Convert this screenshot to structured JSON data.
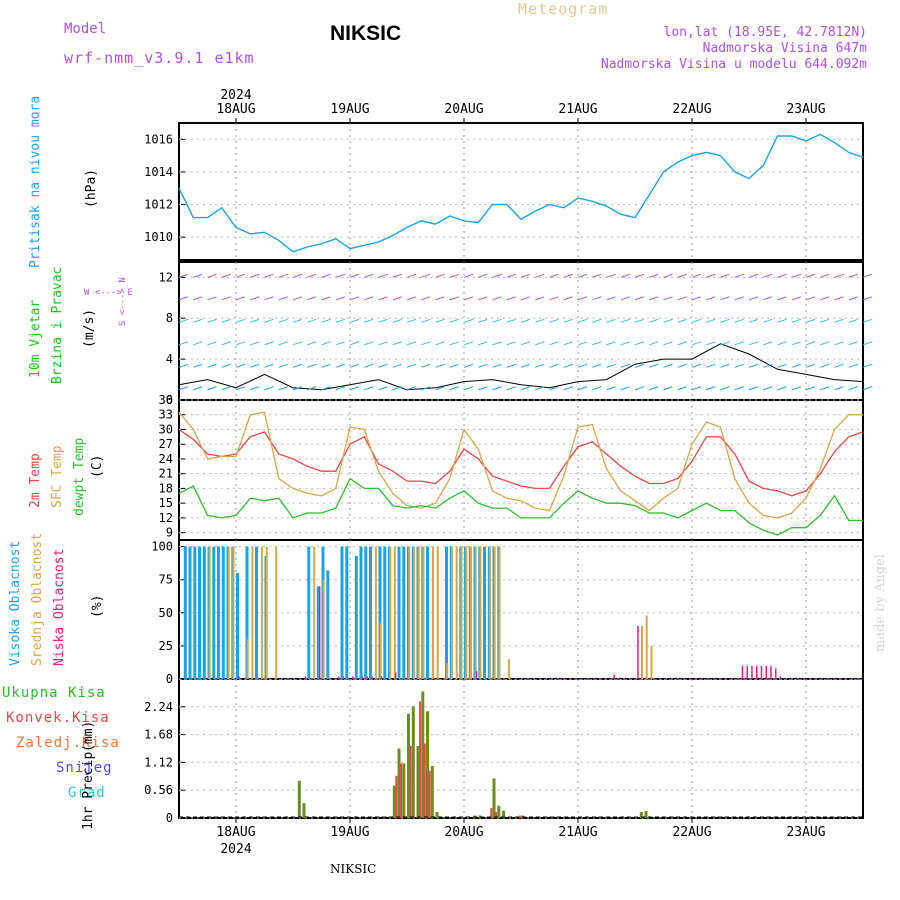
{
  "header": {
    "model_label": "Model",
    "model_name": "wrf-nmm_v3.9.1 e1km",
    "title": "NIKSIC",
    "meteogram_label": "Meteogram",
    "lonlat": "lon,lat (18.95E, 42.7812N)",
    "altitude": "Nadmorska Visina 647m",
    "model_altitude": "Nadmorska Visina u modelu 644.092m",
    "bottom_title": "NIKSIC",
    "watermark": "made by Angel"
  },
  "colors": {
    "pressure": "#1ca3e6",
    "temp2m": "#e84848",
    "sfc": "#d6a84a",
    "dewpt": "#2ebd2e",
    "high_cloud": "#1ca3e6",
    "mid_cloud": "#d6a84a",
    "low_cloud": "#e8207c",
    "total_precip": "#6b8e23",
    "conv_precip": "#e84848",
    "frozen_precip": "#e87a3a",
    "snow": "#5050e0",
    "graupel": "#2ec4c4",
    "wind_label": "#22c322",
    "wind_dir": "#b050e0"
  },
  "time_axis": {
    "year": "2024",
    "days": [
      "18AUG",
      "19AUG",
      "20AUG",
      "21AUG",
      "22AUG",
      "23AUG"
    ],
    "start_day_offset": -0.5,
    "end_day_offset": 5.5
  },
  "panel_labels": {
    "pressure": [
      "Pritisak na nivou mora",
      "(hPa)"
    ],
    "wind": [
      "10m Vjetar",
      "Brzina i Pravac",
      "(m/s)"
    ],
    "wind_compass": [
      "W <---> E",
      "S <---> N"
    ],
    "temp": [
      "2m Temp",
      "SFC Temp",
      "dewpt Temp",
      "(C)"
    ],
    "cloud": [
      "Visoka Oblacnost",
      "Srednja Oblacnost",
      "Niska Oblacnost",
      "(%)"
    ],
    "precip_legend": [
      "Ukupna Kisa",
      "Konvek.Kisa",
      "Zaledj.Kisa",
      "Snijeg",
      "Grad"
    ],
    "precip_axis": [
      "1hr Precip",
      "(mm)"
    ]
  },
  "chart_data": [
    {
      "type": "line",
      "panel": "pressure",
      "ylabel": "(hPa)",
      "ylim": [
        1008.6,
        1017
      ],
      "yticks": [
        1010,
        1012,
        1014,
        1016
      ],
      "x_hours": [
        0,
        3,
        6,
        9,
        12,
        15,
        18,
        21,
        24,
        27,
        30,
        33,
        36,
        39,
        42,
        45,
        48,
        51,
        54,
        57,
        60,
        63,
        66,
        69,
        72,
        75,
        78,
        81,
        84,
        87,
        90,
        93,
        96,
        99,
        102,
        105,
        108,
        111,
        114,
        117,
        120,
        123,
        126,
        129,
        132,
        135,
        138,
        141,
        144
      ],
      "series": [
        {
          "name": "Pritisak na nivou mora",
          "values": [
            1013.0,
            1011.2,
            1011.2,
            1011.8,
            1010.6,
            1010.2,
            1010.3,
            1009.8,
            1009.1,
            1009.4,
            1009.6,
            1009.9,
            1009.3,
            1009.5,
            1009.7,
            1010.1,
            1010.6,
            1011.0,
            1010.8,
            1011.3,
            1011.0,
            1010.9,
            1012.0,
            1012.0,
            1011.1,
            1011.6,
            1012.0,
            1011.8,
            1012.4,
            1012.2,
            1011.9,
            1011.4,
            1011.2,
            1012.6,
            1014.0,
            1014.6,
            1015.0,
            1015.2,
            1015.0,
            1014.0,
            1013.6,
            1014.4,
            1016.2,
            1016.2,
            1015.9,
            1016.3,
            1015.8,
            1015.2,
            1014.9
          ]
        }
      ]
    },
    {
      "type": "line",
      "panel": "wind",
      "ylabel": "(m/s)",
      "ylim": [
        0,
        13.5
      ],
      "yticks": [
        0,
        4,
        8,
        12
      ],
      "x_hours": [
        0,
        6,
        12,
        18,
        24,
        30,
        36,
        42,
        48,
        54,
        60,
        66,
        72,
        78,
        84,
        90,
        96,
        102,
        108,
        114,
        120,
        126,
        132,
        138,
        144
      ],
      "series": [
        {
          "name": "10m Vjetar",
          "values": [
            1.5,
            2.0,
            1.2,
            2.5,
            1.2,
            1.0,
            1.5,
            2.0,
            1.0,
            1.2,
            1.8,
            2.0,
            1.5,
            1.2,
            1.8,
            2.0,
            3.5,
            4.0,
            4.0,
            5.5,
            4.5,
            3.0,
            2.5,
            2.0,
            1.8
          ]
        }
      ]
    },
    {
      "type": "line",
      "panel": "temperature",
      "ylabel": "(C)",
      "ylim": [
        7.5,
        36
      ],
      "yticks": [
        9,
        12,
        15,
        18,
        21,
        24,
        27,
        30,
        33,
        36
      ],
      "x_hours": [
        0,
        3,
        6,
        9,
        12,
        15,
        18,
        21,
        24,
        27,
        30,
        33,
        36,
        39,
        42,
        45,
        48,
        51,
        54,
        57,
        60,
        63,
        66,
        69,
        72,
        75,
        78,
        81,
        84,
        87,
        90,
        93,
        96,
        99,
        102,
        105,
        108,
        111,
        114,
        117,
        120,
        123,
        126,
        129,
        132,
        135,
        138,
        141,
        144
      ],
      "series": [
        {
          "name": "2m Temp",
          "values": [
            30,
            28,
            25,
            24.5,
            25,
            28.5,
            29.5,
            25,
            24,
            22.5,
            21.5,
            21.5,
            27,
            28.5,
            23,
            21.5,
            19.5,
            19.5,
            19,
            21.5,
            26,
            24,
            20.5,
            19.5,
            18.5,
            18,
            18,
            22.5,
            26.5,
            27.5,
            25,
            22.5,
            20.5,
            19,
            19,
            20,
            23.5,
            28.5,
            28.5,
            25,
            19.5,
            18,
            17.5,
            16.5,
            17.5,
            21,
            25.5,
            28.5,
            29.5
          ]
        },
        {
          "name": "SFC Temp",
          "values": [
            33.5,
            30,
            24,
            24.5,
            24.5,
            33,
            33.5,
            20,
            18,
            17,
            16.5,
            18,
            30.5,
            30,
            21.5,
            17,
            14.5,
            14,
            15,
            20,
            30,
            26,
            17.5,
            16,
            15.5,
            14,
            13.5,
            20.5,
            30.5,
            31,
            22,
            17.5,
            15.5,
            13.5,
            16,
            18,
            27,
            31.5,
            30.5,
            20,
            15,
            12.5,
            12,
            13,
            16,
            22,
            30,
            33,
            33
          ]
        },
        {
          "name": "dewpt Temp",
          "values": [
            17,
            18.5,
            12.5,
            12,
            12.5,
            16,
            15.5,
            16,
            12,
            13,
            13,
            14,
            20,
            18,
            18,
            14.5,
            14,
            14.5,
            14,
            16,
            17.5,
            15,
            14,
            14,
            12,
            12,
            12,
            15,
            17.5,
            16,
            15,
            15,
            14.5,
            13,
            13,
            12,
            13.5,
            15,
            13.5,
            13.5,
            11,
            9.5,
            8.5,
            10,
            10,
            12.5,
            16.5,
            11.5,
            11.5
          ]
        }
      ]
    },
    {
      "type": "bar",
      "panel": "cloud",
      "ylabel": "(%)",
      "ylim": [
        0,
        105
      ],
      "yticks": [
        0,
        25,
        50,
        75,
        100
      ],
      "series": [
        {
          "name": "Visoka Oblacnost",
          "hours": [
            1,
            2,
            3,
            4,
            5,
            6,
            7,
            8,
            9,
            10,
            11,
            12,
            14,
            16,
            18,
            27,
            29,
            30,
            31,
            34,
            35,
            37,
            38,
            39,
            40,
            42,
            43,
            44,
            46,
            47,
            48,
            49,
            50,
            51,
            52,
            56,
            57,
            59,
            60,
            61,
            62,
            63,
            64,
            65,
            66,
            67
          ],
          "values": [
            100,
            100,
            100,
            100,
            100,
            100,
            100,
            100,
            100,
            100,
            100,
            80,
            100,
            100,
            93,
            100,
            70,
            100,
            82,
            100,
            100,
            93,
            100,
            100,
            100,
            100,
            100,
            100,
            100,
            100,
            100,
            100,
            100,
            100,
            100,
            100,
            100,
            100,
            100,
            100,
            100,
            100,
            100,
            100,
            100,
            100
          ]
        },
        {
          "name": "Srednja Oblacnost",
          "hours": [
            6,
            10,
            11,
            14,
            15,
            17,
            18,
            20,
            28,
            30,
            41,
            42,
            44,
            45,
            48,
            49,
            50,
            51,
            53,
            54,
            56,
            57,
            58,
            59,
            60,
            61,
            62,
            63,
            65,
            66,
            67,
            69,
            97,
            98,
            99
          ],
          "values": [
            100,
            100,
            100,
            30,
            100,
            100,
            100,
            100,
            100,
            75,
            100,
            42,
            100,
            100,
            100,
            100,
            100,
            100,
            100,
            100,
            12,
            100,
            100,
            100,
            100,
            100,
            100,
            100,
            100,
            100,
            100,
            15,
            40,
            48,
            25
          ]
        },
        {
          "name": "Niska Oblacnost",
          "hours": [
            12,
            26,
            29,
            33,
            34,
            36,
            38,
            39,
            40,
            42,
            45,
            62,
            91,
            96,
            118,
            119,
            120,
            121,
            122,
            123,
            124,
            125,
            126
          ],
          "values": [
            2,
            2,
            70,
            2,
            2,
            2,
            2,
            2,
            2,
            2,
            5,
            6,
            3,
            40,
            10,
            10,
            10,
            10,
            10,
            10,
            10,
            8,
            2
          ]
        }
      ]
    },
    {
      "type": "bar",
      "panel": "precipitation",
      "ylabel": "1hr Precip (mm)",
      "ylim": [
        0,
        2.8
      ],
      "yticks": [
        0,
        0.56,
        1.12,
        1.68,
        2.24
      ],
      "series": [
        {
          "name": "Ukupna Kisa",
          "hours": [
            25,
            26,
            45,
            46,
            47,
            48,
            49,
            50,
            51,
            52,
            53,
            54,
            62,
            63,
            66,
            67,
            68,
            72,
            97,
            98
          ],
          "values": [
            0.75,
            0.3,
            0.65,
            1.4,
            1.1,
            2.1,
            2.25,
            1.45,
            2.55,
            2.15,
            1.05,
            0.12,
            0.05,
            0.05,
            0.8,
            0.25,
            0.15,
            0.05,
            0.12,
            0.14
          ]
        },
        {
          "name": "Konvek.Kisa",
          "hours": [
            46,
            47,
            49,
            51,
            52,
            53,
            66,
            67,
            72
          ],
          "values": [
            0.85,
            1.1,
            1.45,
            2.35,
            1.5,
            0.95,
            0.2,
            0.12,
            0.05
          ]
        }
      ]
    }
  ]
}
